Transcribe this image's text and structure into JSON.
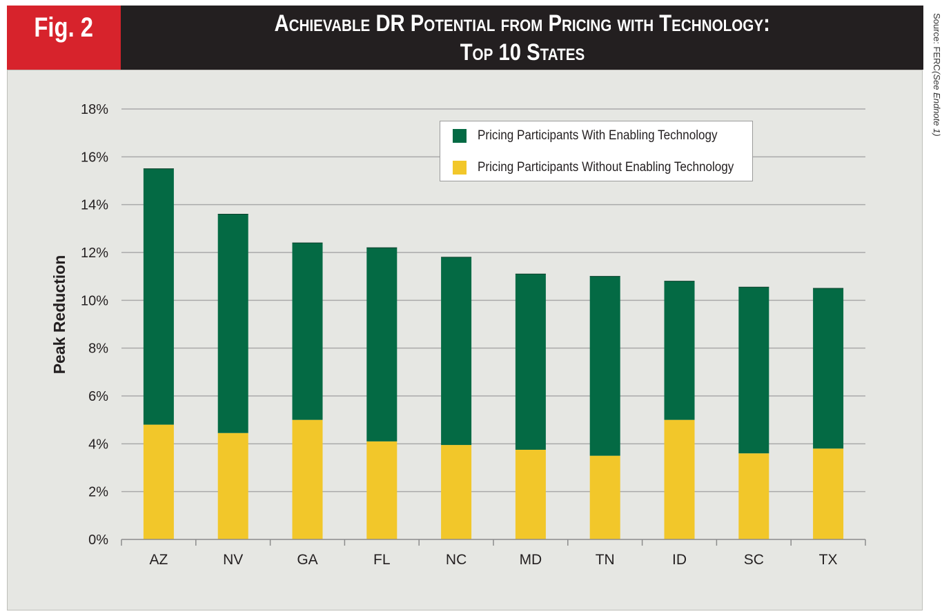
{
  "figure": {
    "badge": "Fig. 2",
    "title_line1": "Achievable DR Potential from Pricing with Technology:",
    "title_line2": "Top 10 States",
    "source_prefix": "Source: FERC ",
    "source_note": "(See Endnote 1)"
  },
  "colors": {
    "badge": "#d7232c",
    "title_bar": "#231f20",
    "panel": "#e6e7e3",
    "with_tech": "#046a44",
    "without_tech": "#f2c72a",
    "grid": "#a9a9a9"
  },
  "chart_data": {
    "type": "bar",
    "stacked": true,
    "title": "Achievable DR Potential from Pricing with Technology: Top 10 States",
    "xlabel": "",
    "ylabel": "Peak Reduction",
    "ylim": [
      0,
      18
    ],
    "yticks": [
      0,
      2,
      4,
      6,
      8,
      10,
      12,
      14,
      16,
      18
    ],
    "ytick_labels": [
      "0%",
      "2%",
      "4%",
      "6%",
      "8%",
      "10%",
      "12%",
      "14%",
      "16%",
      "18%"
    ],
    "grid": true,
    "legend_position": "top-right",
    "categories": [
      "AZ",
      "NV",
      "GA",
      "FL",
      "NC",
      "MD",
      "TN",
      "ID",
      "SC",
      "TX"
    ],
    "series": [
      {
        "name": "Pricing Participants Without Enabling Technology",
        "color": "#f2c72a",
        "values": [
          4.8,
          4.45,
          5.0,
          4.1,
          3.95,
          3.75,
          3.5,
          5.0,
          3.6,
          3.8
        ]
      },
      {
        "name": "Pricing Participants With Enabling Technology",
        "color": "#046a44",
        "values": [
          10.7,
          9.15,
          7.4,
          8.1,
          7.85,
          7.35,
          7.5,
          5.8,
          6.95,
          6.7
        ]
      }
    ],
    "totals": [
      15.5,
      13.6,
      12.4,
      12.2,
      11.8,
      11.1,
      11.0,
      10.8,
      10.55,
      10.5
    ]
  }
}
